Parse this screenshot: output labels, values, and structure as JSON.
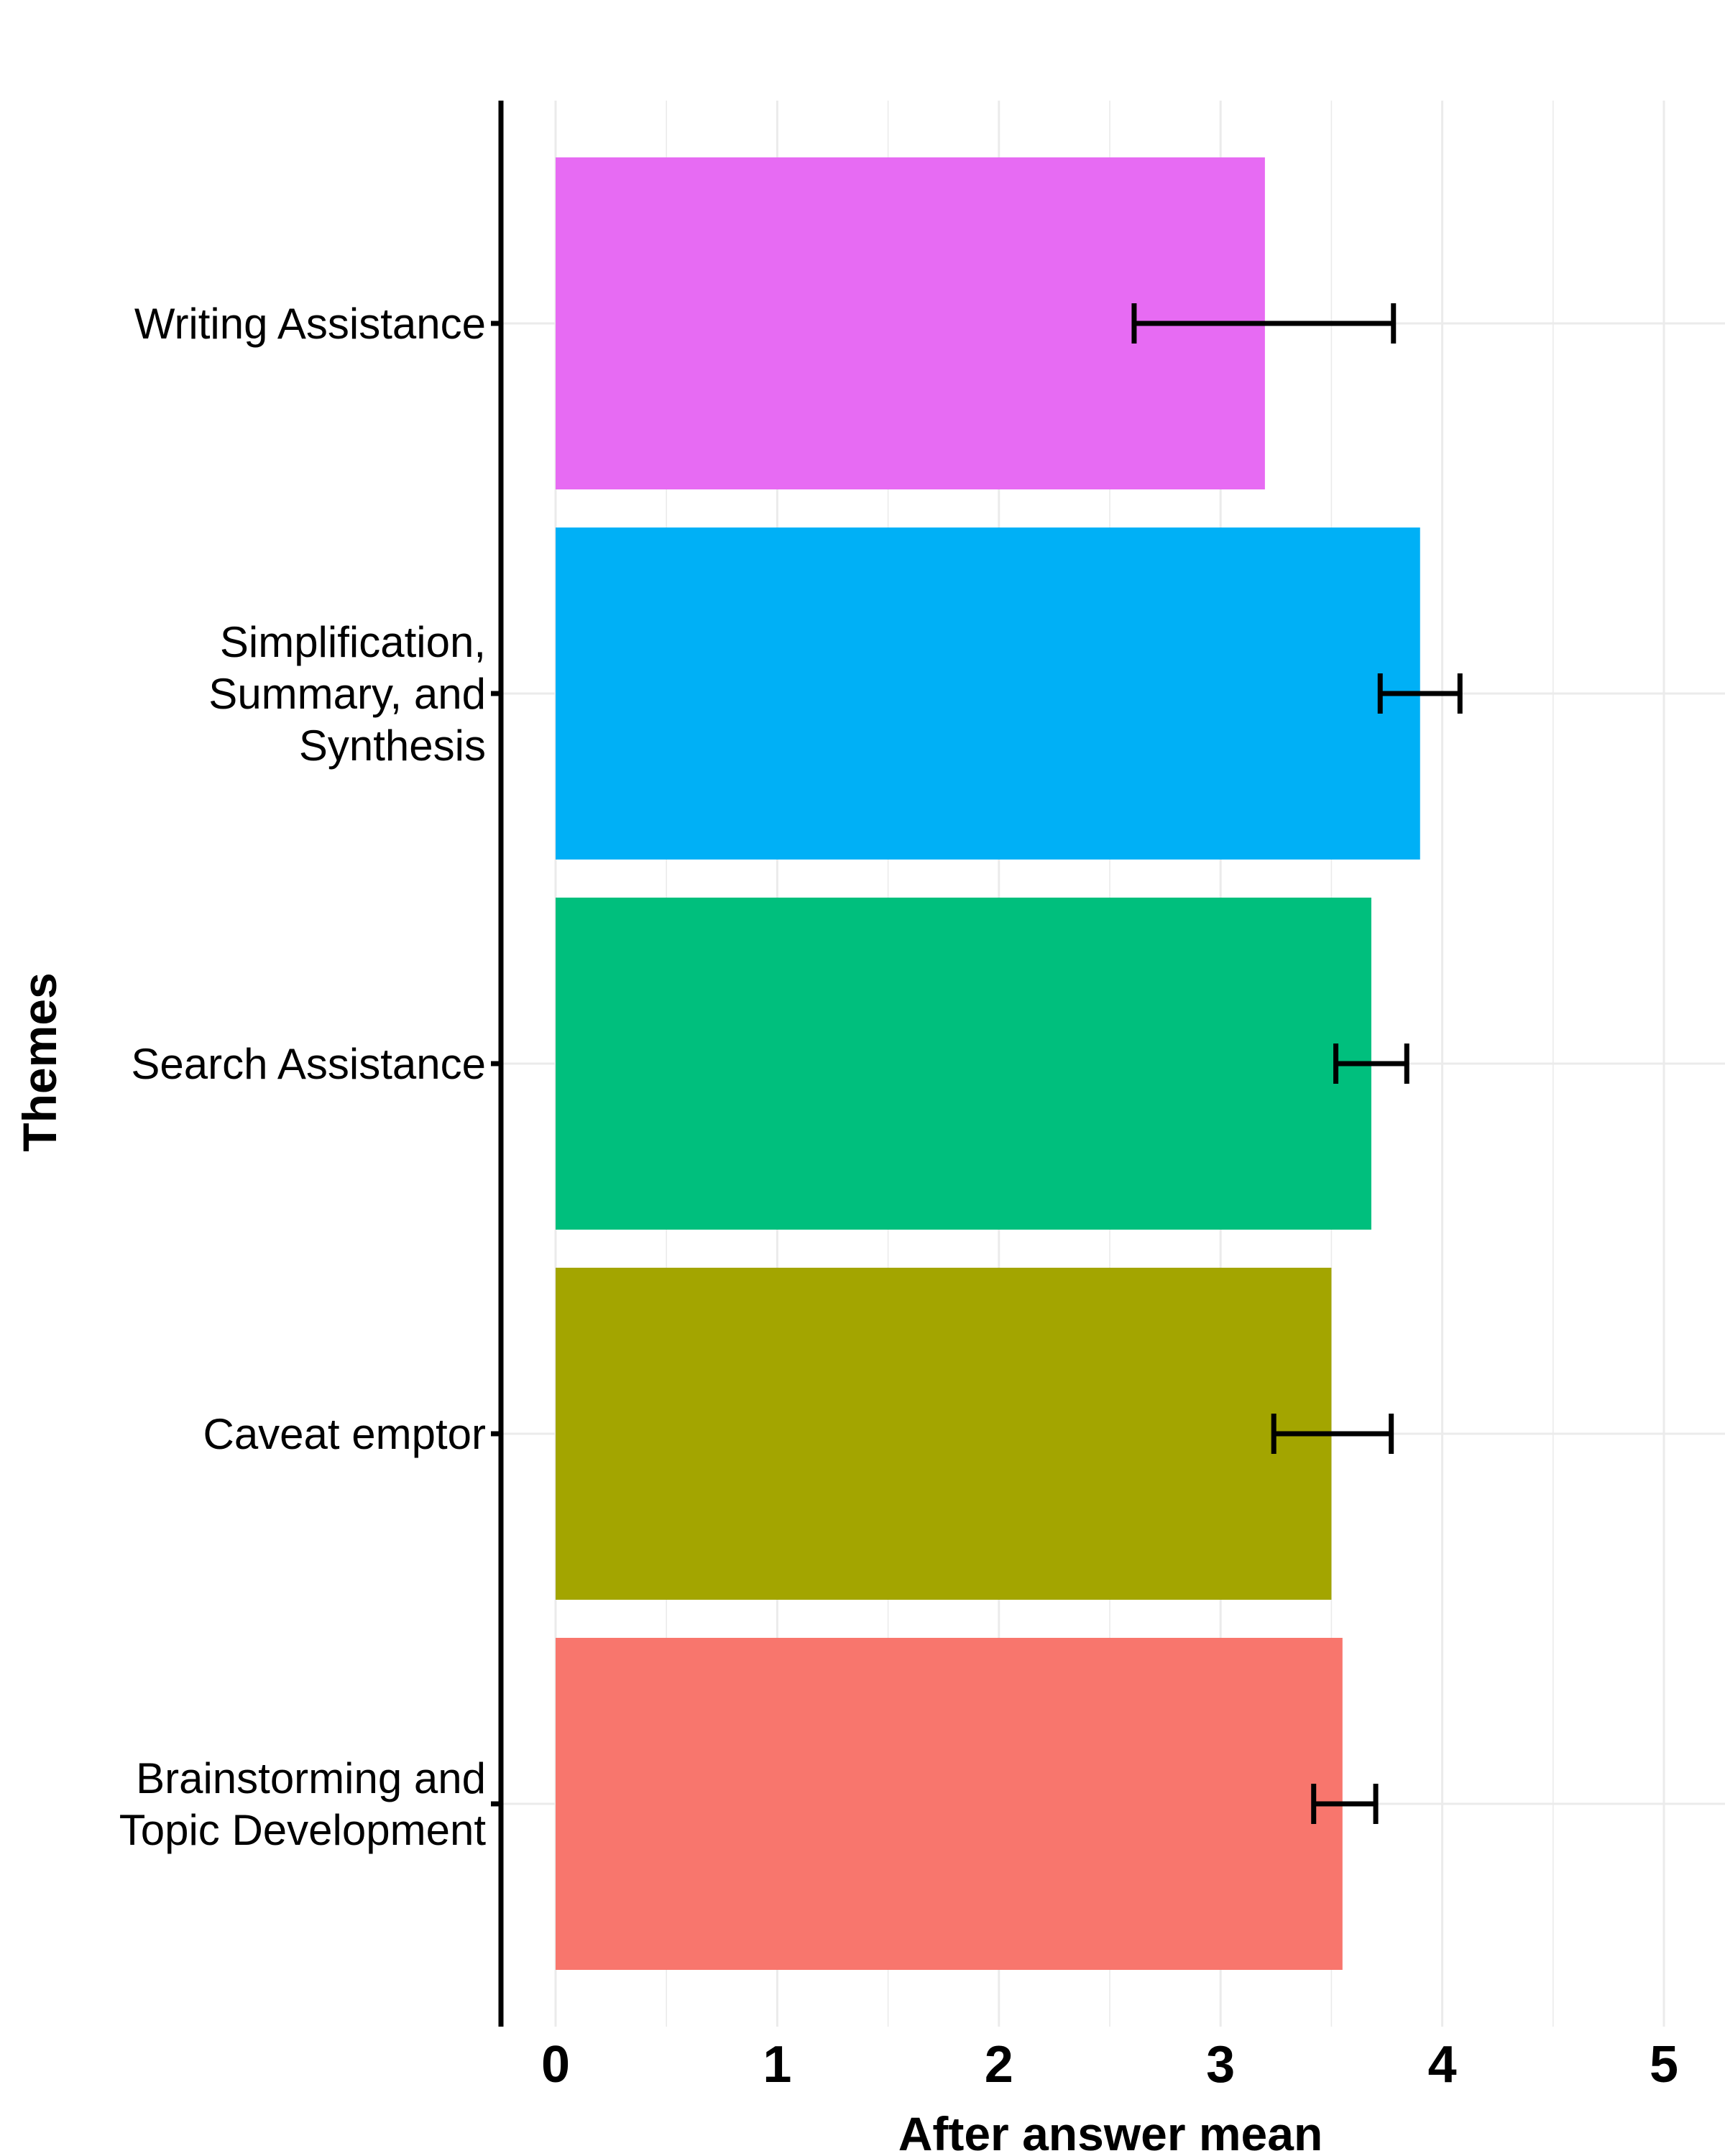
{
  "chart_data": {
    "type": "bar",
    "orientation": "horizontal",
    "title": "",
    "xlabel": "After answer mean",
    "ylabel": "Themes",
    "xlim": [
      0,
      5
    ],
    "xticks": [
      "0",
      "1",
      "2",
      "3",
      "4",
      "5"
    ],
    "grid": true,
    "legend": "none",
    "categories": [
      "Writing Assistance",
      "Simplification,\nSummary, and\nSynthesis",
      "Search Assistance",
      "Caveat emptor",
      "Brainstorming and\nTopic Development"
    ],
    "values": [
      3.2,
      3.9,
      3.68,
      3.5,
      3.55
    ],
    "error_low": [
      2.61,
      3.72,
      3.52,
      3.24,
      3.42
    ],
    "error_high": [
      3.78,
      4.08,
      3.84,
      3.77,
      3.7
    ],
    "colors": [
      "#E76BF3",
      "#00B0F6",
      "#00BF7D",
      "#A3A500",
      "#F8766D"
    ]
  }
}
